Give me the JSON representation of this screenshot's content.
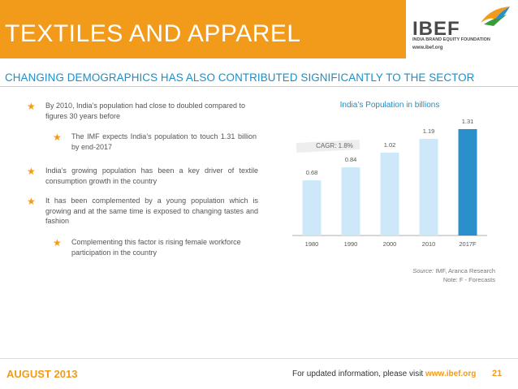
{
  "header": {
    "title": "TEXTILES AND APPAREL",
    "logo_text": "IBEF",
    "logo_subtitle": "INDIA BRAND EQUITY FOUNDATION",
    "logo_url": "www.ibef.org"
  },
  "subtitle": "CHANGING DEMOGRAPHICS HAS ALSO CONTRIBUTED SIGNIFICANTLY TO THE SECTOR",
  "bullets": [
    "By 2010, India’s population had close to doubled compared to figures 30 years before",
    "The IMF expects India’s population to touch 1.31 billion by end-2017",
    "India’s growing population has been a key driver of textile consumption growth in the country",
    "It has been complemented by a young population which is growing and at the same time is exposed to changing tastes and fashion",
    "Complementing this factor is rising female workforce participation in the country"
  ],
  "chart_data": {
    "type": "bar",
    "title": "India’s Population in billions",
    "categories": [
      "1980",
      "1990",
      "2000",
      "2010",
      "2017F"
    ],
    "values": [
      0.68,
      0.84,
      1.02,
      1.19,
      1.31
    ],
    "value_labels": [
      "0.68",
      "0.84",
      "1.02",
      "1.19",
      "1.31"
    ],
    "annotation": "CAGR: 1.8%",
    "ylim": [
      0,
      1.35
    ],
    "xlabel": "",
    "ylabel": "",
    "colors": {
      "actual": "#cde9f9",
      "forecast": "#2a8fcb"
    }
  },
  "source": {
    "label": "Source:",
    "text": "IMF, Aranca Research",
    "note": "Note: F - Forecasts"
  },
  "footer": {
    "date": "AUGUST 2013",
    "info": "For updated information, please visit",
    "url": "www.ibef.org",
    "page": "21"
  },
  "colors": {
    "header_bg": "#f29a19",
    "subtitle": "#1a8fc9"
  }
}
